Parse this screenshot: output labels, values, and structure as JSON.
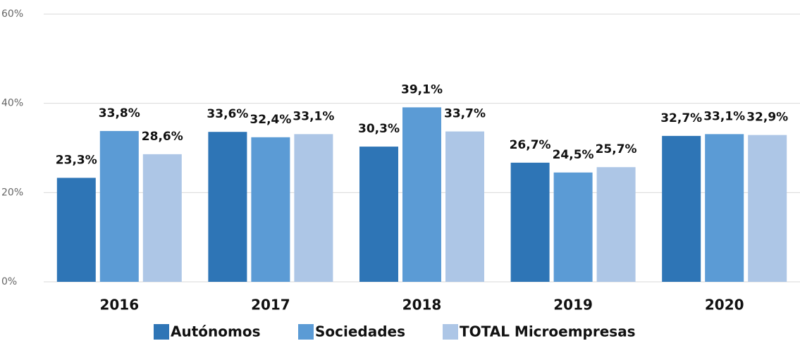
{
  "chart_data": {
    "type": "bar",
    "categories": [
      "2016",
      "2017",
      "2018",
      "2019",
      "2020"
    ],
    "series": [
      {
        "name": "Autónomos",
        "color": "#2e75b6",
        "values": [
          23.3,
          33.6,
          30.3,
          26.7,
          32.7
        ],
        "value_labels": [
          "23,3%",
          "33,6%",
          "30,3%",
          "26,7%",
          "32,7%"
        ]
      },
      {
        "name": "Sociedades",
        "color": "#5b9bd5",
        "values": [
          33.8,
          32.4,
          39.1,
          24.5,
          33.1
        ],
        "value_labels": [
          "33,8%",
          "32,4%",
          "39,1%",
          "24,5%",
          "33,1%"
        ]
      },
      {
        "name": "TOTAL Microempresas",
        "color": "#adc6e6",
        "values": [
          28.6,
          33.1,
          33.7,
          25.7,
          32.9
        ],
        "value_labels": [
          "28,6%",
          "33,1%",
          "33,7%",
          "25,7%",
          "32,9%"
        ]
      }
    ],
    "ylim": [
      0,
      60
    ],
    "yticks": [
      {
        "value": 0,
        "label": "0%"
      },
      {
        "value": 20,
        "label": "20%"
      },
      {
        "value": 40,
        "label": "40%"
      },
      {
        "value": 60,
        "label": "60%"
      }
    ],
    "grid": true,
    "legend": "bottom"
  }
}
